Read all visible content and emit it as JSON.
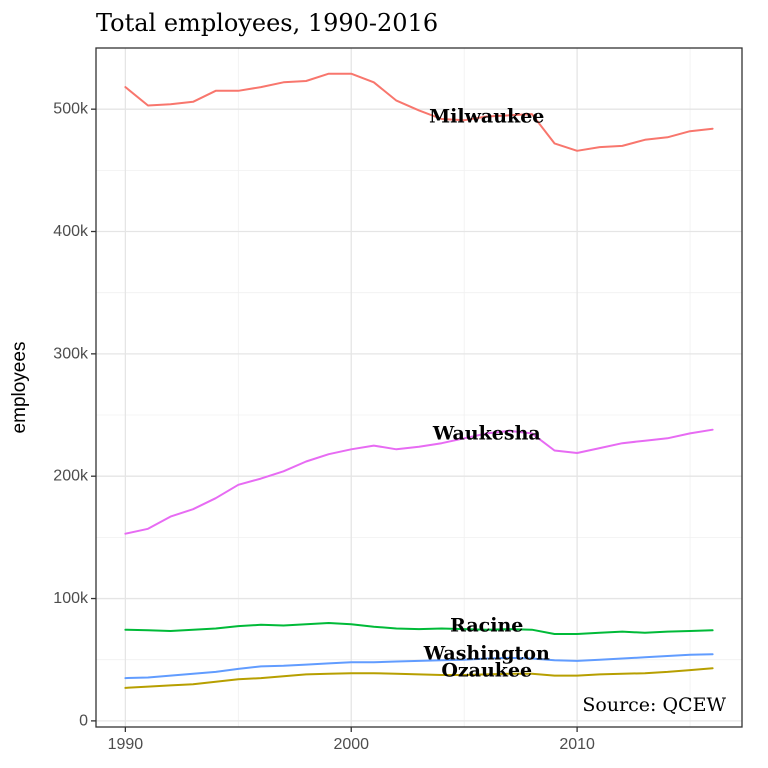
{
  "chart_data": {
    "type": "line",
    "title": "Total employees, 1990-2016",
    "xlabel": "",
    "ylabel": "employees",
    "xlim": [
      1988.7,
      2017.3
    ],
    "ylim": [
      -5000,
      550000
    ],
    "x_ticks": [
      1990,
      2000,
      2010
    ],
    "x_tick_labels": [
      "1990",
      "2000",
      "2010"
    ],
    "y_ticks": [
      0,
      100000,
      200000,
      300000,
      400000,
      500000
    ],
    "y_tick_labels": [
      "0",
      "100k",
      "200k",
      "300k",
      "400k",
      "500k"
    ],
    "grid": true,
    "legend": "none",
    "annotation": "Source: QCEW",
    "x": [
      1990,
      1991,
      1992,
      1993,
      1994,
      1995,
      1996,
      1997,
      1998,
      1999,
      2000,
      2001,
      2002,
      2003,
      2004,
      2005,
      2006,
      2007,
      2008,
      2009,
      2010,
      2011,
      2012,
      2013,
      2014,
      2015,
      2016
    ],
    "series": [
      {
        "name": "Milwaukee",
        "color": "#F8766D",
        "label_at": [
          2006,
          494000
        ],
        "values": [
          518000,
          503000,
          504000,
          506000,
          515000,
          515000,
          518000,
          522000,
          523000,
          529000,
          529000,
          522000,
          507000,
          499000,
          492000,
          491000,
          494000,
          495000,
          496000,
          472000,
          466000,
          469000,
          470000,
          475000,
          477000,
          482000,
          484000
        ]
      },
      {
        "name": "Waukesha",
        "color": "#E76BF3",
        "label_at": [
          2006,
          235000
        ],
        "values": [
          153000,
          157000,
          167000,
          173000,
          182000,
          193000,
          198000,
          204000,
          212000,
          218000,
          222000,
          225000,
          222000,
          224000,
          227000,
          231000,
          235000,
          237000,
          235000,
          221000,
          219000,
          223000,
          227000,
          229000,
          231000,
          235000,
          238000
        ]
      },
      {
        "name": "Racine",
        "color": "#00BA38",
        "label_at": [
          2006,
          78000
        ],
        "values": [
          74500,
          74000,
          73500,
          74500,
          75500,
          77500,
          78500,
          78000,
          79000,
          80000,
          79000,
          77000,
          75500,
          75000,
          75500,
          75000,
          74500,
          75000,
          74500,
          71000,
          71000,
          72000,
          73000,
          72000,
          73000,
          73500,
          74000
        ]
      },
      {
        "name": "Washington",
        "color": "#619CFF",
        "label_at": [
          2006,
          55000
        ],
        "values": [
          35000,
          35500,
          37000,
          38500,
          40000,
          42500,
          44500,
          45000,
          46000,
          47000,
          48000,
          48000,
          48500,
          49000,
          49500,
          50000,
          51000,
          51500,
          51000,
          49500,
          49000,
          50000,
          51000,
          52000,
          53000,
          54000,
          54500
        ]
      },
      {
        "name": "Ozaukee",
        "color": "#B79F00",
        "label_at": [
          2006,
          41000
        ],
        "values": [
          27000,
          28000,
          29000,
          30000,
          32000,
          34000,
          35000,
          36500,
          38000,
          38500,
          39000,
          39000,
          38500,
          38000,
          37500,
          37500,
          38000,
          38500,
          38500,
          37000,
          37000,
          38000,
          38500,
          39000,
          40000,
          41500,
          43000
        ]
      }
    ]
  }
}
